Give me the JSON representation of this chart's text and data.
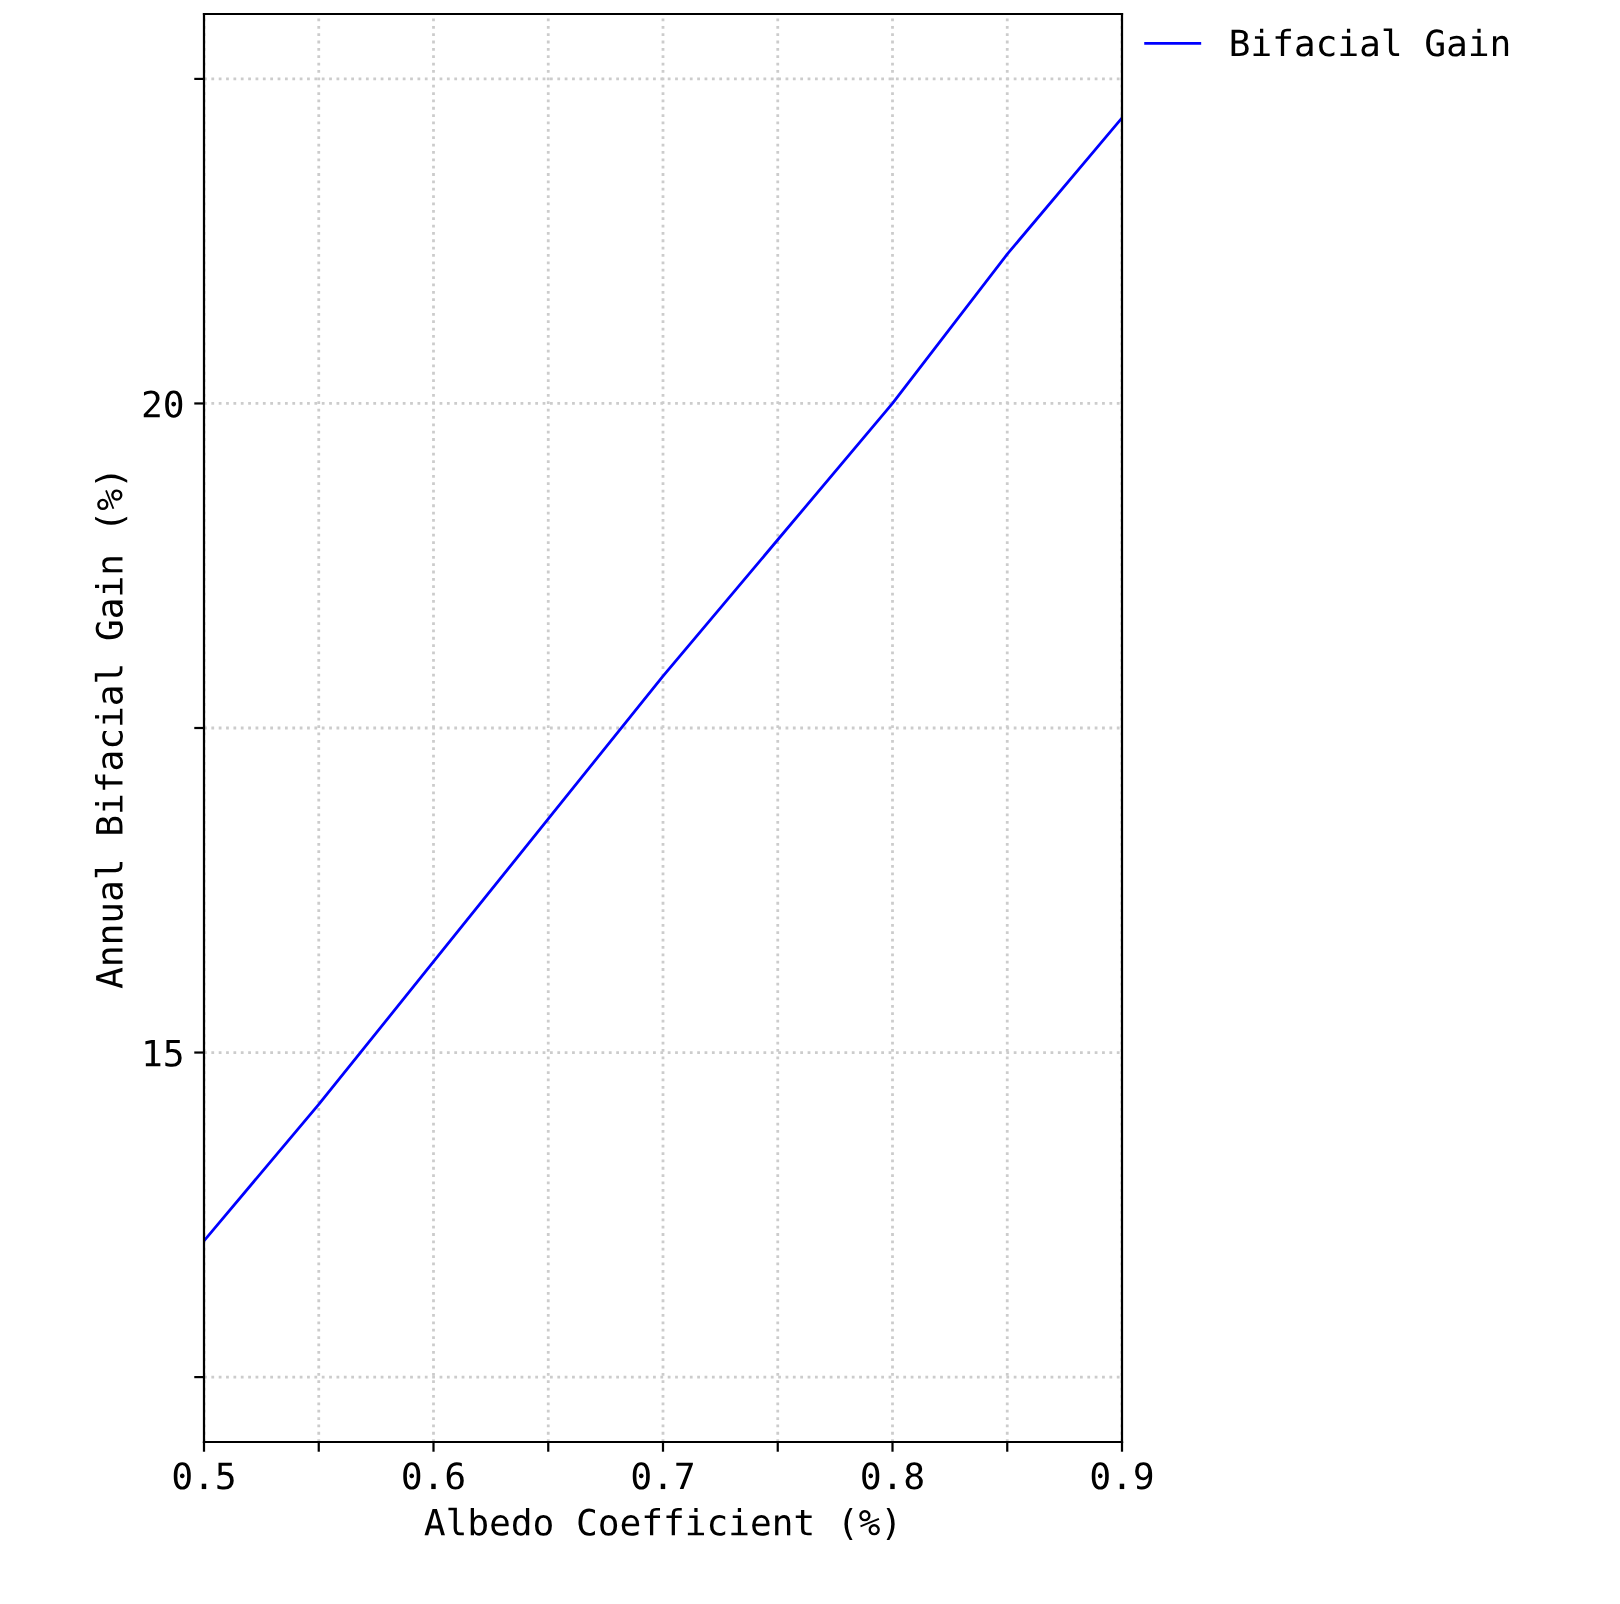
{
  "chart_data": {
    "type": "line",
    "xlabel": "Albedo Coefficient (%)",
    "ylabel": "Annual Bifacial Gain (%)",
    "x": [
      0.5,
      0.55,
      0.6,
      0.65,
      0.7,
      0.75,
      0.8,
      0.85,
      0.9
    ],
    "series": [
      {
        "name": "Bifacial Gain",
        "color": "#0000ff",
        "values": [
          13.55,
          14.6,
          15.7,
          16.8,
          17.9,
          18.95,
          20.0,
          21.15,
          22.2
        ]
      }
    ],
    "xlim": [
      0.5,
      0.9
    ],
    "xticks": [
      0.5,
      {
        "value": 0.55,
        "label": null
      },
      0.6,
      {
        "value": 0.65,
        "label": null
      },
      0.7,
      {
        "value": 0.75,
        "label": null
      },
      0.8,
      {
        "value": 0.85,
        "label": null
      },
      0.9
    ],
    "ylim": [
      12,
      23
    ],
    "yticks": [
      {
        "value": 12.5,
        "label": null
      },
      15,
      {
        "value": 17.5,
        "label": null
      },
      20,
      {
        "value": 22.5,
        "label": null
      }
    ],
    "grid": true,
    "legend": "top right",
    "marker": "none",
    "line_style": "solid"
  }
}
